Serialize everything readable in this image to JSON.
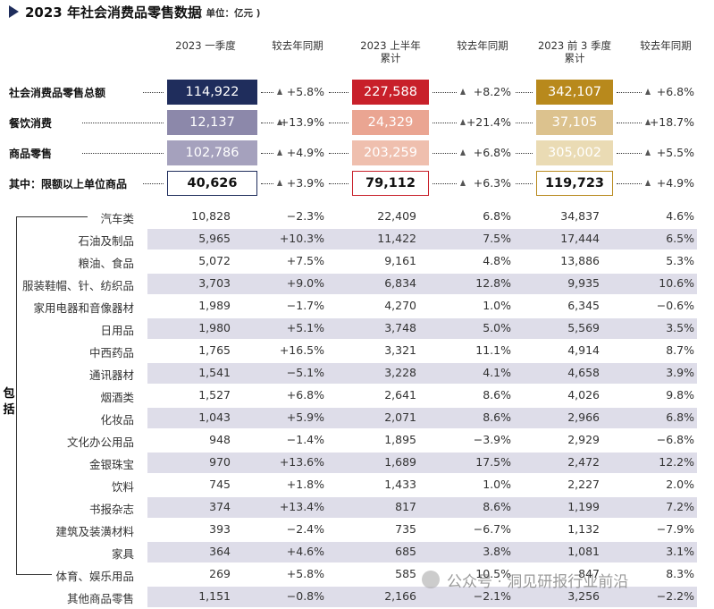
{
  "header": {
    "title": "2023 年社会消费品零售数据",
    "unit": "( 单位：亿元 )"
  },
  "table": {
    "columns": [
      [
        "2023 一季度"
      ],
      [
        "较去年同期"
      ],
      [
        "2023 上半年",
        "累计"
      ],
      [
        "较去年同期"
      ],
      [
        "2023 前 3 季度",
        "累计"
      ],
      [
        "较去年同期"
      ]
    ],
    "summary_rows": [
      [
        "社会消费品零售总额",
        "114,922",
        "+5.8%",
        "227,588",
        "+8.2%",
        "342,107",
        "+6.8%"
      ],
      [
        "餐饮消费",
        "12,137",
        "+13.9%",
        "24,329",
        "+21.4%",
        "37,105",
        "+18.7%"
      ],
      [
        "商品零售",
        "102,786",
        "+4.9%",
        "203,259",
        "+6.8%",
        "305,002",
        "+5.5%"
      ],
      [
        "其中：限额以上单位商品",
        "40,626",
        "+3.9%",
        "79,112",
        "+6.3%",
        "119,723",
        "+4.9%"
      ]
    ],
    "breakdown_label": "包括",
    "rows": [
      [
        "汽车类",
        "10,828",
        "−2.3%",
        "22,409",
        "6.8%",
        "34,837",
        "4.6%"
      ],
      [
        "石油及制品",
        "5,965",
        "+10.3%",
        "11,422",
        "7.5%",
        "17,444",
        "6.5%"
      ],
      [
        "粮油、食品",
        "5,072",
        "+7.5%",
        "9,161",
        "4.8%",
        "13,886",
        "5.3%"
      ],
      [
        "服装鞋帽、针、纺织品",
        "3,703",
        "+9.0%",
        "6,834",
        "12.8%",
        "9,935",
        "10.6%"
      ],
      [
        "家用电器和音像器材",
        "1,989",
        "−1.7%",
        "4,270",
        "1.0%",
        "6,345",
        "−0.6%"
      ],
      [
        "日用品",
        "1,980",
        "+5.1%",
        "3,748",
        "5.0%",
        "5,569",
        "3.5%"
      ],
      [
        "中西药品",
        "1,765",
        "+16.5%",
        "3,321",
        "11.1%",
        "4,914",
        "8.7%"
      ],
      [
        "通讯器材",
        "1,541",
        "−5.1%",
        "3,228",
        "4.1%",
        "4,658",
        "3.9%"
      ],
      [
        "烟酒类",
        "1,527",
        "+6.8%",
        "2,641",
        "8.6%",
        "4,026",
        "9.8%"
      ],
      [
        "化妆品",
        "1,043",
        "+5.9%",
        "2,071",
        "8.6%",
        "2,966",
        "6.8%"
      ],
      [
        "文化办公用品",
        "948",
        "−1.4%",
        "1,895",
        "−3.9%",
        "2,929",
        "−6.8%"
      ],
      [
        "金银珠宝",
        "970",
        "+13.6%",
        "1,689",
        "17.5%",
        "2,472",
        "12.2%"
      ],
      [
        "饮料",
        "745",
        "+1.8%",
        "1,433",
        "1.0%",
        "2,227",
        "2.0%"
      ],
      [
        "书报杂志",
        "374",
        "+13.4%",
        "817",
        "8.6%",
        "1,199",
        "7.2%"
      ],
      [
        "建筑及装潢材料",
        "393",
        "−2.4%",
        "735",
        "−6.7%",
        "1,132",
        "−7.9%"
      ],
      [
        "家具",
        "364",
        "+4.6%",
        "685",
        "3.8%",
        "1,081",
        "3.1%"
      ],
      [
        "体育、娱乐用品",
        "269",
        "+5.8%",
        "585",
        "10.5%",
        "847",
        "8.3%"
      ],
      [
        "其他商品零售",
        "1,151",
        "−0.8%",
        "2,166",
        "−2.1%",
        "3,256",
        "−2.2%"
      ]
    ]
  },
  "watermark": "公众号 · 洞见研报行业前沿"
}
